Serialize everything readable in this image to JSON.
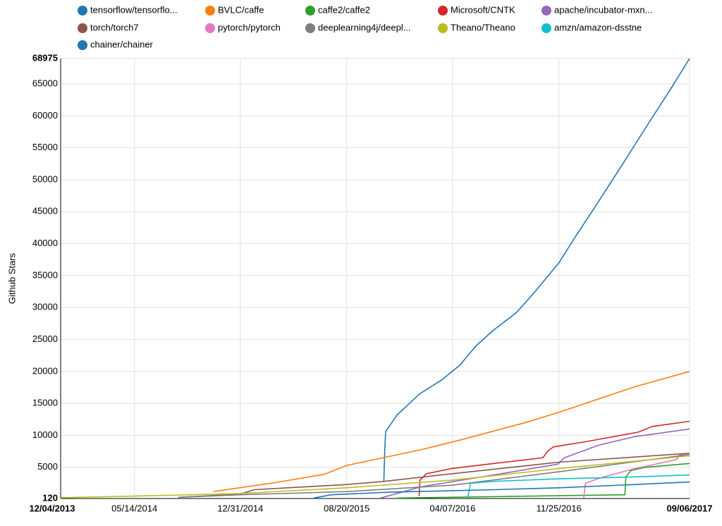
{
  "chart_data": {
    "type": "line",
    "y_label": "Github Stars",
    "xlim": [
      "12/04/2013",
      "09/06/2017"
    ],
    "xticks": [
      "12/04/2013",
      "05/14/2014",
      "12/31/2014",
      "08/20/2015",
      "04/07/2016",
      "11/25/2016",
      "09/06/2017"
    ],
    "ylim": [
      120,
      68975
    ],
    "yticks": [
      120,
      5000,
      10000,
      15000,
      20000,
      25000,
      30000,
      35000,
      40000,
      45000,
      50000,
      55000,
      60000,
      65000,
      68975
    ],
    "grid": true,
    "series": [
      {
        "name": "tensorflow/tensorflo...",
        "color": "#1f77b4",
        "x": [
          "11/09/2015",
          "11/11/2015",
          "11/13/2015",
          "12/08/2015",
          "01/26/2016",
          "03/15/2016",
          "04/23/2016",
          "05/28/2016",
          "07/06/2016",
          "08/24/2016",
          "09/28/2016",
          "11/25/2016",
          "12/30/2016",
          "02/14/2017",
          "04/09/2017",
          "06/01/2017",
          "07/25/2017",
          "09/06/2017"
        ],
        "values": [
          2800,
          7800,
          10600,
          13200,
          16500,
          18700,
          21000,
          24000,
          26500,
          29200,
          32000,
          37000,
          41000,
          46000,
          52000,
          58000,
          64000,
          68975
        ]
      },
      {
        "name": "BVLC/caffe",
        "color": "#ff7f0e",
        "x": [
          "11/03/2014",
          "12/29/2014",
          "03/17/2015",
          "07/02/2015",
          "08/20/2015",
          "02/01/2016",
          "04/20/2016",
          "09/13/2016",
          "11/25/2016",
          "05/09/2017",
          "09/06/2017"
        ],
        "values": [
          1200,
          1800,
          2600,
          3900,
          5300,
          7800,
          9200,
          12000,
          13600,
          17600,
          20000
        ]
      },
      {
        "name": "caffe2/caffe2",
        "color": "#2ca02c",
        "x": [
          "12/08/2015",
          "04/18/2017",
          "04/20/2017",
          "05/01/2017",
          "06/01/2017",
          "09/06/2017"
        ],
        "values": [
          200,
          700,
          3500,
          4500,
          5000,
          5600
        ]
      },
      {
        "name": "Microsoft/CNTK",
        "color": "#d62728",
        "x": [
          "01/25/2016",
          "01/27/2016",
          "02/10/2016",
          "04/04/2016",
          "07/06/2016",
          "10/21/2016",
          "10/31/2016",
          "11/13/2016",
          "01/22/2017",
          "05/17/2017",
          "06/17/2017",
          "09/06/2017"
        ],
        "values": [
          500,
          3000,
          4000,
          4800,
          5600,
          6500,
          7500,
          8200,
          9000,
          10500,
          11400,
          12200
        ]
      },
      {
        "name": "apache/incubator-mxn...",
        "color": "#9467bd",
        "x": [
          "11/02/2015",
          "02/01/2016",
          "07/06/2016",
          "11/23/2016",
          "12/07/2016",
          "02/21/2017",
          "05/09/2017",
          "09/06/2017"
        ],
        "values": [
          200,
          2000,
          3800,
          5500,
          6500,
          8500,
          9800,
          11000
        ]
      },
      {
        "name": "torch/torch7",
        "color": "#8c564b",
        "x": [
          "08/18/2014",
          "12/31/2014",
          "01/30/2015",
          "08/20/2015",
          "11/10/2015",
          "04/07/2016",
          "11/25/2016",
          "09/06/2017"
        ],
        "values": [
          300,
          800,
          1500,
          2300,
          2800,
          4000,
          5800,
          7200
        ]
      },
      {
        "name": "pytorch/pytorch",
        "color": "#e377c2",
        "x": [
          "01/18/2017",
          "01/22/2017",
          "02/21/2017",
          "05/09/2017",
          "08/08/2017",
          "08/15/2017",
          "09/06/2017"
        ],
        "values": [
          200,
          2500,
          3300,
          4800,
          6200,
          6900,
          7100
        ]
      },
      {
        "name": "deeplearning4j/deepl...",
        "color": "#7f7f7f",
        "x": [
          "08/18/2014",
          "12/31/2014",
          "08/20/2015",
          "04/07/2016",
          "11/25/2016",
          "09/06/2017"
        ],
        "values": [
          300,
          700,
          1200,
          2200,
          4300,
          7000
        ]
      },
      {
        "name": "Theano/Theano",
        "color": "#bcbd22",
        "x": [
          "12/04/2013",
          "05/14/2014",
          "12/31/2014",
          "08/20/2015",
          "04/07/2016",
          "11/25/2016",
          "09/06/2017"
        ],
        "values": [
          250,
          500,
          900,
          1800,
          3000,
          4800,
          6800
        ]
      },
      {
        "name": "amzn/amazon-dsstne",
        "color": "#17becf",
        "x": [
          "05/10/2016",
          "05/16/2016",
          "07/06/2016",
          "11/25/2016",
          "05/09/2017",
          "09/06/2017"
        ],
        "values": [
          200,
          2500,
          2800,
          3200,
          3500,
          3800
        ]
      },
      {
        "name": "chainer/chainer",
        "color": "#1f77b4",
        "x": [
          "06/09/2015",
          "07/18/2015",
          "11/18/2015",
          "07/06/2016",
          "11/25/2016",
          "05/09/2017",
          "09/06/2017"
        ],
        "values": [
          200,
          700,
          1100,
          1500,
          1800,
          2300,
          2700
        ]
      }
    ]
  }
}
